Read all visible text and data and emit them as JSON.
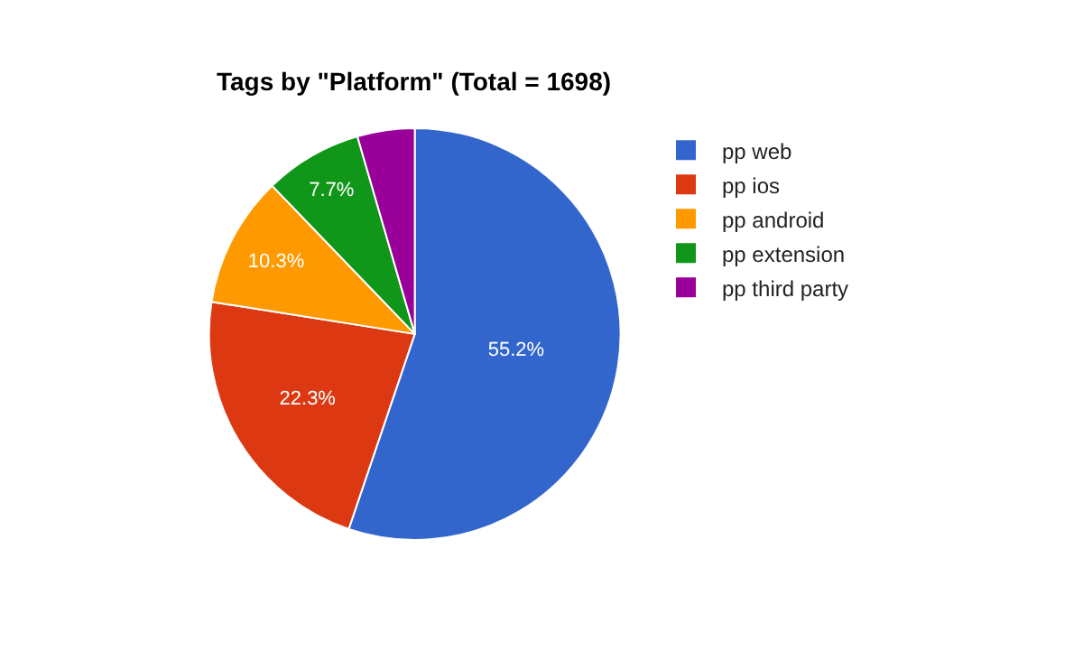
{
  "chart_data": {
    "type": "pie",
    "title": "Tags by \"Platform\" (Total = 1698)",
    "categories": [
      "pp web",
      "pp ios",
      "pp android",
      "pp extension",
      "pp third party"
    ],
    "values": [
      55.2,
      22.3,
      10.3,
      7.7,
      4.5
    ],
    "colors": [
      "#3366cc",
      "#dc3912",
      "#ff9900",
      "#109618",
      "#990099"
    ],
    "value_labels": [
      "55.2%",
      "22.3%",
      "10.3%",
      "7.7%",
      null
    ],
    "legend": "right"
  }
}
